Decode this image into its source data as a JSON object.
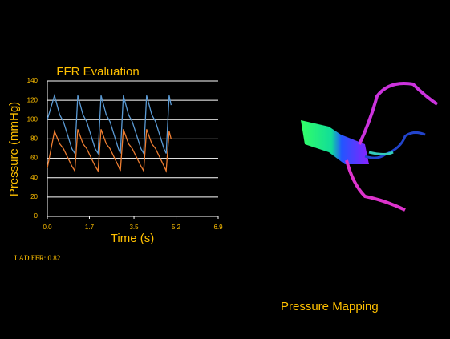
{
  "chart_data": {
    "type": "line",
    "title": "FFR Evaluation",
    "xlabel": "Time (s)",
    "ylabel": "Pressure (mmHg)",
    "x": [
      0.0,
      0.29,
      0.5,
      0.65,
      0.99,
      1.11,
      1.23,
      1.44,
      1.59,
      1.93,
      2.05,
      2.17,
      2.38,
      2.53,
      2.87,
      2.95,
      3.07,
      3.28,
      3.43,
      3.78,
      3.89,
      4.01,
      4.22,
      4.37,
      4.71,
      4.8,
      4.92,
      5.0
    ],
    "series": [
      {
        "color": "#5b9bd5",
        "values": [
          100,
          125,
          105,
          98,
          70,
          65,
          125,
          105,
          98,
          70,
          65,
          125,
          105,
          98,
          70,
          65,
          125,
          105,
          98,
          70,
          65,
          125,
          105,
          98,
          70,
          65,
          125,
          115
        ]
      },
      {
        "color": "#ed7d31",
        "values": [
          50,
          88,
          75,
          70,
          52,
          47,
          90,
          75,
          70,
          52,
          47,
          90,
          75,
          70,
          52,
          47,
          90,
          75,
          70,
          52,
          47,
          90,
          75,
          70,
          52,
          47,
          88,
          80
        ]
      }
    ],
    "xlim": [
      0,
      6.9
    ],
    "xticks": [
      {
        "value": 0,
        "label": "0.0"
      },
      1.7,
      3.5,
      5.2,
      6.9
    ],
    "ylim": [
      0,
      140
    ],
    "yticks": [
      0,
      20,
      40,
      60,
      80,
      100,
      120,
      140
    ],
    "grid": true
  },
  "annotation": "LAD FFR: 0.82",
  "caption": "Pressure Mapping"
}
